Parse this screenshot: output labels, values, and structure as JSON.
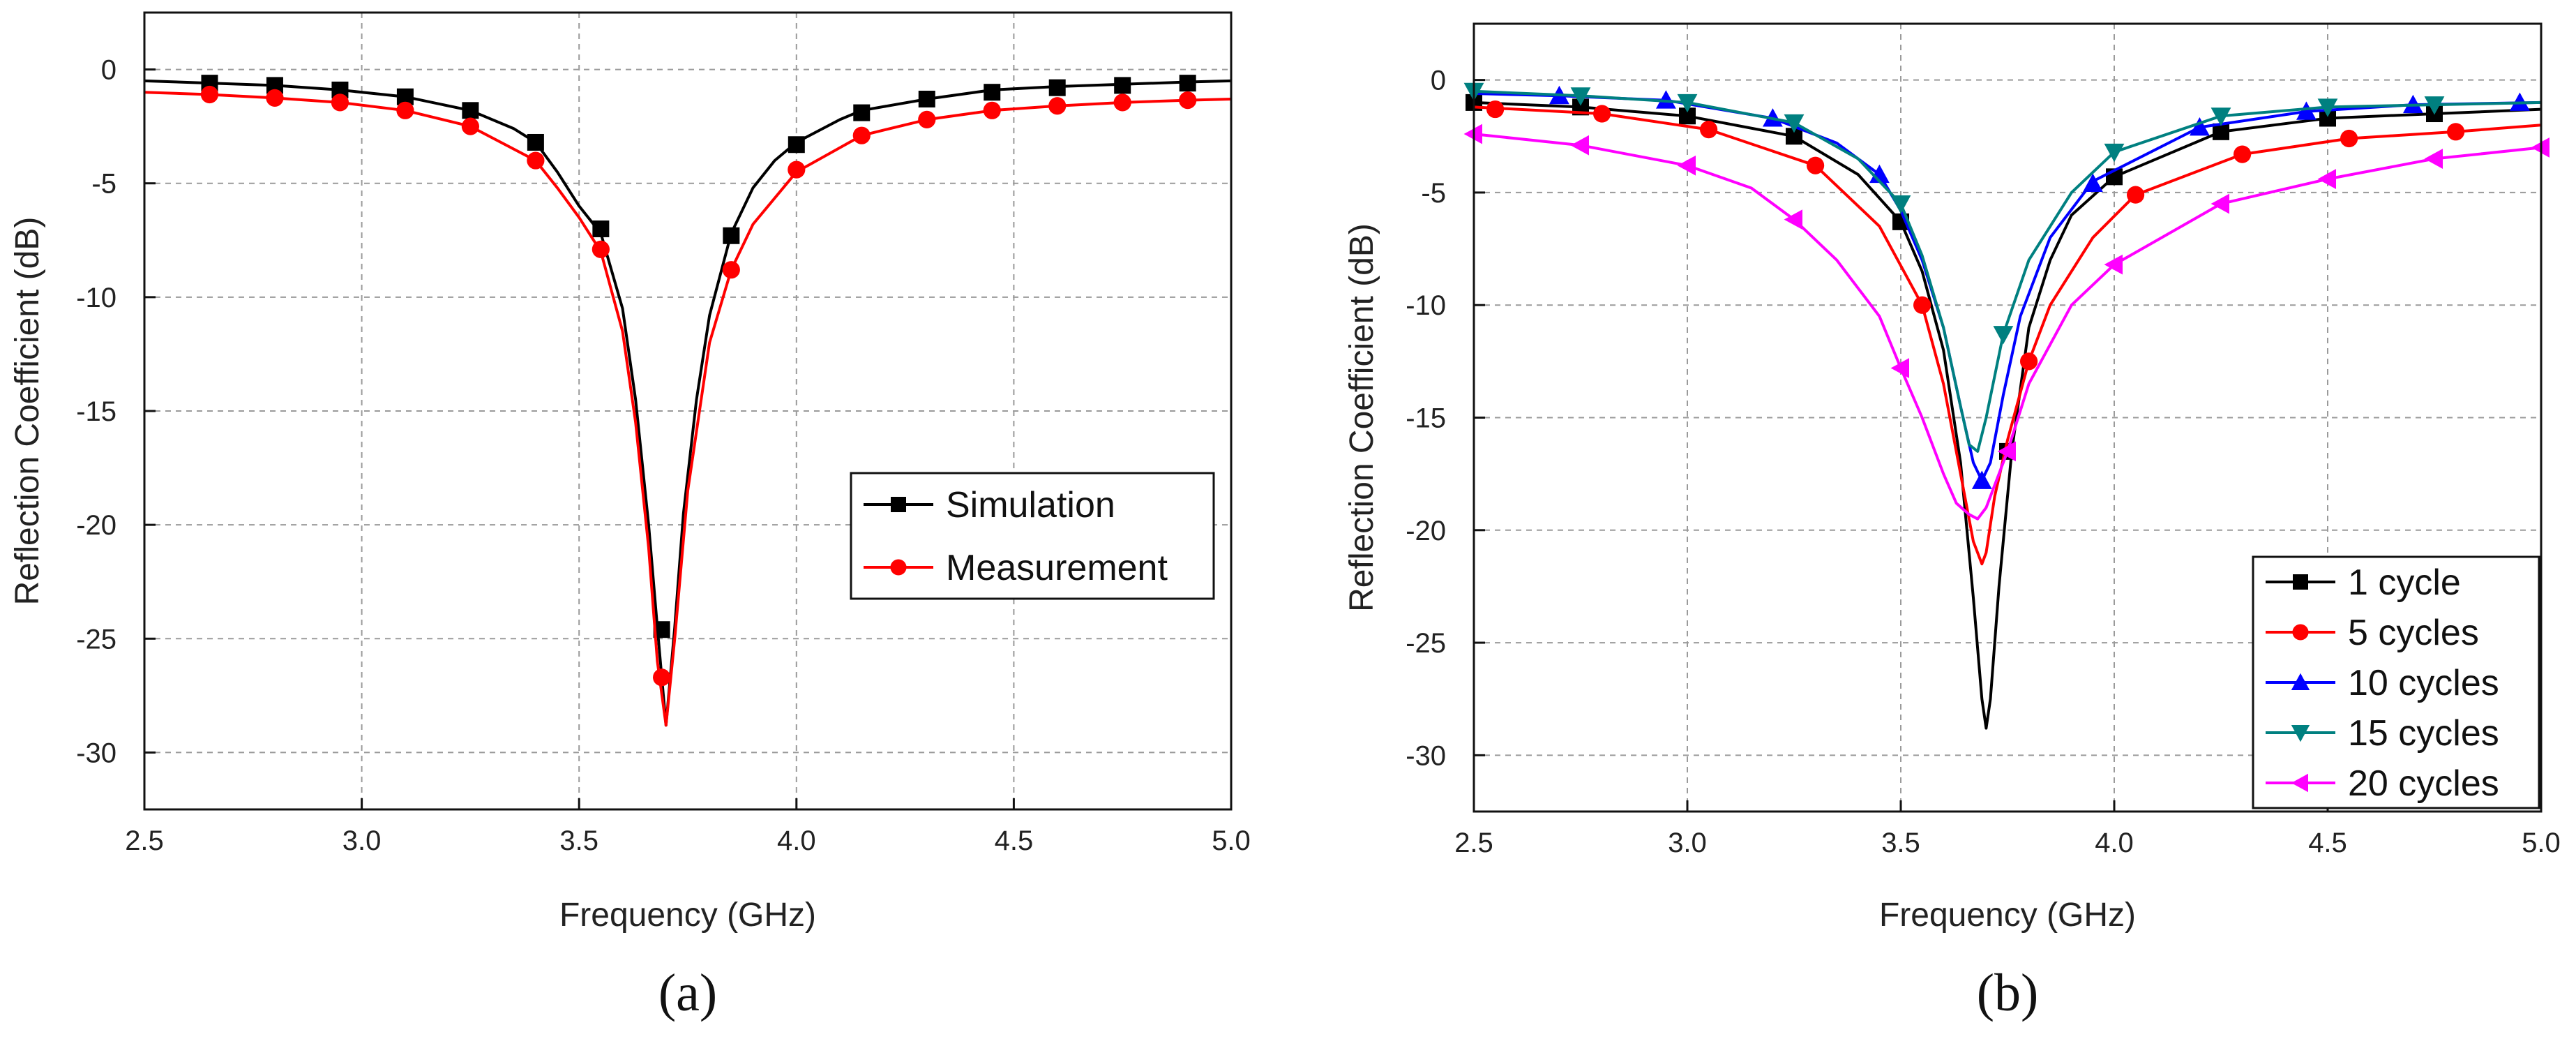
{
  "chart_data": [
    {
      "type": "line",
      "caption": "(a)",
      "xlabel": "Frequency (GHz)",
      "ylabel": "Reflection Coefficient (dB)",
      "xlim": [
        2.5,
        5.0
      ],
      "ylim": [
        -32.5,
        2.5
      ],
      "xticks": [
        "2.5",
        "3.0",
        "3.5",
        "4.0",
        "4.5",
        "5.0"
      ],
      "yticks": [
        "0",
        "-5",
        "-10",
        "-15",
        "-20",
        "-25",
        "-30"
      ],
      "grid": true,
      "legend_position": "center-right",
      "series": [
        {
          "name": "Simulation",
          "color": "#000000",
          "marker": "square",
          "x": [
            2.5,
            2.65,
            2.8,
            2.95,
            3.1,
            3.25,
            3.35,
            3.4,
            3.45,
            3.5,
            3.55,
            3.6,
            3.63,
            3.66,
            3.68,
            3.7,
            3.72,
            3.74,
            3.77,
            3.8,
            3.85,
            3.9,
            3.95,
            4.0,
            4.1,
            4.15,
            4.3,
            4.45,
            4.6,
            4.75,
            4.9,
            5.0
          ],
          "y": [
            -0.5,
            -0.6,
            -0.7,
            -0.9,
            -1.2,
            -1.8,
            -2.6,
            -3.2,
            -4.5,
            -6.0,
            -7.2,
            -10.5,
            -14.5,
            -20.0,
            -24.5,
            -28.8,
            -24.5,
            -19.5,
            -14.5,
            -10.8,
            -7.2,
            -5.2,
            -4.0,
            -3.2,
            -2.2,
            -1.8,
            -1.3,
            -0.9,
            -0.75,
            -0.65,
            -0.55,
            -0.5
          ],
          "marker_x": [
            2.65,
            2.8,
            2.95,
            3.1,
            3.25,
            3.4,
            3.55,
            3.69,
            3.85,
            4.0,
            4.15,
            4.3,
            4.45,
            4.6,
            4.75,
            4.9
          ],
          "marker_y": [
            -0.6,
            -0.7,
            -0.9,
            -1.2,
            -1.8,
            -3.2,
            -7.0,
            -24.6,
            -7.3,
            -3.3,
            -1.9,
            -1.3,
            -1.0,
            -0.8,
            -0.7,
            -0.6
          ]
        },
        {
          "name": "Measurement",
          "color": "#ff0000",
          "marker": "circle",
          "x": [
            2.5,
            2.65,
            2.8,
            2.95,
            3.1,
            3.25,
            3.4,
            3.45,
            3.5,
            3.55,
            3.6,
            3.63,
            3.66,
            3.68,
            3.7,
            3.72,
            3.75,
            3.8,
            3.85,
            3.9,
            4.0,
            4.15,
            4.3,
            4.45,
            4.6,
            4.75,
            4.9,
            5.0
          ],
          "y": [
            -1.0,
            -1.1,
            -1.25,
            -1.45,
            -1.8,
            -2.5,
            -4.0,
            -5.2,
            -6.5,
            -8.0,
            -11.5,
            -15.5,
            -21.0,
            -26.0,
            -28.8,
            -25.0,
            -18.5,
            -12.0,
            -8.8,
            -6.8,
            -4.5,
            -2.9,
            -2.2,
            -1.8,
            -1.6,
            -1.45,
            -1.35,
            -1.3
          ],
          "marker_x": [
            2.65,
            2.8,
            2.95,
            3.1,
            3.25,
            3.4,
            3.55,
            3.69,
            3.85,
            4.0,
            4.15,
            4.3,
            4.45,
            4.6,
            4.75,
            4.9
          ],
          "marker_y": [
            -1.1,
            -1.25,
            -1.45,
            -1.8,
            -2.5,
            -4.0,
            -7.9,
            -26.7,
            -8.8,
            -4.4,
            -2.9,
            -2.2,
            -1.8,
            -1.6,
            -1.45,
            -1.35
          ]
        }
      ]
    },
    {
      "type": "line",
      "caption": "(b)",
      "xlabel": "Frequency (GHz)",
      "ylabel": "Reflection Coefficient (dB)",
      "xlim": [
        2.5,
        5.0
      ],
      "ylim": [
        -32.5,
        2.5
      ],
      "xticks": [
        "2.5",
        "3.0",
        "3.5",
        "4.0",
        "4.5",
        "5.0"
      ],
      "yticks": [
        "0",
        "-5",
        "-10",
        "-15",
        "-20",
        "-25",
        "-30"
      ],
      "grid": true,
      "legend_position": "bottom-right",
      "series": [
        {
          "name": "1 cycle",
          "color": "#000000",
          "marker": "square",
          "x": [
            2.5,
            2.75,
            3.0,
            3.25,
            3.4,
            3.5,
            3.55,
            3.6,
            3.64,
            3.67,
            3.69,
            3.7,
            3.71,
            3.73,
            3.76,
            3.8,
            3.85,
            3.9,
            4.0,
            4.25,
            4.5,
            4.75,
            5.0
          ],
          "y": [
            -1.0,
            -1.2,
            -1.6,
            -2.5,
            -4.2,
            -6.3,
            -8.5,
            -12.0,
            -17.0,
            -23.0,
            -27.5,
            -28.8,
            -27.5,
            -22.5,
            -16.5,
            -11.0,
            -8.0,
            -6.0,
            -4.3,
            -2.3,
            -1.7,
            -1.5,
            -1.3
          ],
          "marker_x": [
            2.5,
            2.75,
            3.0,
            3.25,
            3.5,
            3.75,
            4.0,
            4.25,
            4.5,
            4.75
          ],
          "marker_y": [
            -1.0,
            -1.2,
            -1.6,
            -2.5,
            -6.3,
            -16.5,
            -4.3,
            -2.3,
            -1.7,
            -1.5
          ]
        },
        {
          "name": "5 cycles",
          "color": "#ff0000",
          "marker": "circle",
          "x": [
            2.5,
            2.8,
            3.05,
            3.3,
            3.45,
            3.55,
            3.6,
            3.64,
            3.67,
            3.69,
            3.7,
            3.72,
            3.75,
            3.8,
            3.85,
            3.95,
            4.05,
            4.3,
            4.55,
            4.8,
            5.0
          ],
          "y": [
            -1.2,
            -1.5,
            -2.2,
            -3.8,
            -6.5,
            -10.0,
            -13.5,
            -17.5,
            -20.5,
            -21.5,
            -21.0,
            -18.5,
            -16.0,
            -12.5,
            -10.0,
            -7.0,
            -5.1,
            -3.3,
            -2.6,
            -2.3,
            -2.0
          ],
          "marker_x": [
            2.55,
            2.8,
            3.05,
            3.3,
            3.55,
            3.8,
            4.05,
            4.3,
            4.55,
            4.8
          ],
          "marker_y": [
            -1.3,
            -1.5,
            -2.2,
            -3.8,
            -10.0,
            -12.5,
            -5.1,
            -3.3,
            -2.6,
            -2.3
          ]
        },
        {
          "name": "10 cycles",
          "color": "#0000ff",
          "marker": "triangle-up",
          "x": [
            2.5,
            2.7,
            2.95,
            3.2,
            3.35,
            3.45,
            3.5,
            3.55,
            3.6,
            3.64,
            3.67,
            3.69,
            3.71,
            3.74,
            3.78,
            3.85,
            3.95,
            4.2,
            4.45,
            4.7,
            5.0
          ],
          "y": [
            -0.6,
            -0.7,
            -0.9,
            -1.7,
            -2.8,
            -4.2,
            -5.8,
            -8.0,
            -11.0,
            -14.5,
            -17.0,
            -17.8,
            -17.0,
            -14.0,
            -10.5,
            -7.0,
            -4.5,
            -2.1,
            -1.4,
            -1.1,
            -1.0
          ],
          "marker_x": [
            2.7,
            2.95,
            3.2,
            3.45,
            3.69,
            3.95,
            4.2,
            4.45,
            4.7,
            4.95
          ],
          "marker_y": [
            -0.7,
            -0.9,
            -1.7,
            -4.2,
            -17.8,
            -4.6,
            -2.1,
            -1.4,
            -1.1,
            -1.0
          ]
        },
        {
          "name": "15 cycles",
          "color": "#008080",
          "marker": "triangle-down",
          "x": [
            2.5,
            2.75,
            3.0,
            3.25,
            3.4,
            3.5,
            3.55,
            3.6,
            3.64,
            3.66,
            3.68,
            3.7,
            3.74,
            3.8,
            3.9,
            4.0,
            4.25,
            4.5,
            4.75,
            5.0
          ],
          "y": [
            -0.5,
            -0.7,
            -1.0,
            -1.9,
            -3.5,
            -5.5,
            -7.8,
            -11.0,
            -14.5,
            -16.2,
            -16.5,
            -15.0,
            -11.3,
            -8.0,
            -5.0,
            -3.2,
            -1.6,
            -1.2,
            -1.1,
            -1.0
          ],
          "marker_x": [
            2.5,
            2.75,
            3.0,
            3.25,
            3.5,
            3.74,
            4.0,
            4.25,
            4.5,
            4.75
          ],
          "marker_y": [
            -0.5,
            -0.7,
            -1.0,
            -1.9,
            -5.5,
            -11.3,
            -3.2,
            -1.6,
            -1.2,
            -1.1
          ]
        },
        {
          "name": "20 cycles",
          "color": "#ff00ff",
          "marker": "triangle-left",
          "x": [
            2.5,
            2.75,
            3.0,
            3.15,
            3.25,
            3.35,
            3.45,
            3.5,
            3.55,
            3.6,
            3.63,
            3.66,
            3.68,
            3.7,
            3.72,
            3.75,
            3.8,
            3.9,
            4.0,
            4.25,
            4.5,
            4.75,
            5.0
          ],
          "y": [
            -2.4,
            -2.9,
            -3.8,
            -4.8,
            -6.2,
            -8.0,
            -10.5,
            -12.8,
            -15.0,
            -17.5,
            -18.8,
            -19.3,
            -19.5,
            -19.0,
            -18.0,
            -16.5,
            -13.5,
            -10.0,
            -8.2,
            -5.5,
            -4.4,
            -3.5,
            -3.0
          ],
          "marker_x": [
            2.5,
            2.75,
            3.0,
            3.25,
            3.5,
            3.75,
            4.0,
            4.25,
            4.5,
            4.75,
            5.0
          ],
          "marker_y": [
            -2.4,
            -2.9,
            -3.8,
            -6.2,
            -12.8,
            -16.5,
            -8.2,
            -5.5,
            -4.4,
            -3.5,
            -3.0
          ]
        }
      ]
    }
  ]
}
